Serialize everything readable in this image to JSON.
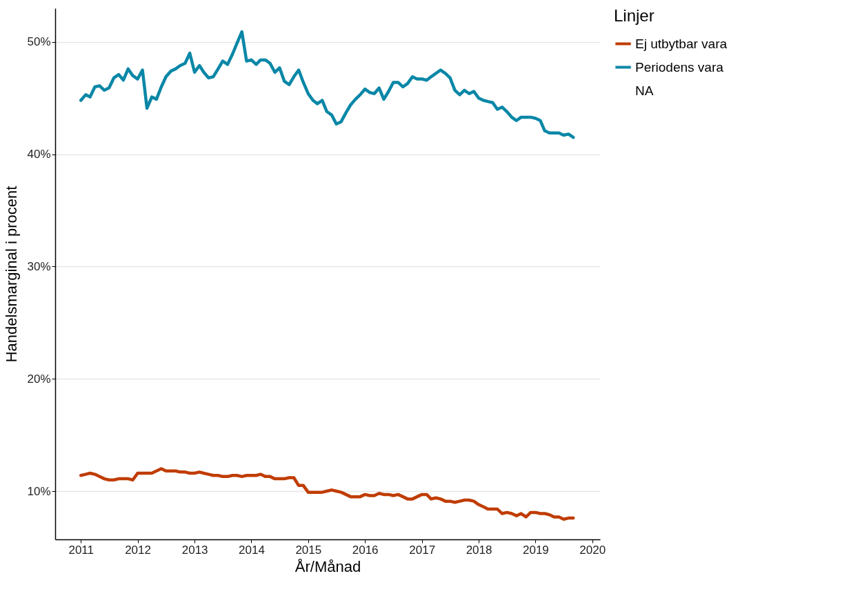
{
  "chart_data": {
    "type": "line",
    "xlabel": "År/Månad",
    "ylabel": "Handelsmarginal i procent",
    "legend_title": "Linjer",
    "x": [
      "2011-01",
      "2011-02",
      "2011-03",
      "2011-04",
      "2011-05",
      "2011-06",
      "2011-07",
      "2011-08",
      "2011-09",
      "2011-10",
      "2011-11",
      "2011-12",
      "2012-01",
      "2012-02",
      "2012-03",
      "2012-04",
      "2012-05",
      "2012-06",
      "2012-07",
      "2012-08",
      "2012-09",
      "2012-10",
      "2012-11",
      "2012-12",
      "2013-01",
      "2013-02",
      "2013-03",
      "2013-04",
      "2013-05",
      "2013-06",
      "2013-07",
      "2013-08",
      "2013-09",
      "2013-10",
      "2013-11",
      "2013-12",
      "2014-01",
      "2014-02",
      "2014-03",
      "2014-04",
      "2014-05",
      "2014-06",
      "2014-07",
      "2014-08",
      "2014-09",
      "2014-10",
      "2014-11",
      "2014-12",
      "2015-01",
      "2015-02",
      "2015-03",
      "2015-04",
      "2015-05",
      "2015-06",
      "2015-07",
      "2015-08",
      "2015-09",
      "2015-10",
      "2015-11",
      "2015-12",
      "2016-01",
      "2016-02",
      "2016-03",
      "2016-04",
      "2016-05",
      "2016-06",
      "2016-07",
      "2016-08",
      "2016-09",
      "2016-10",
      "2016-11",
      "2016-12",
      "2017-01",
      "2017-02",
      "2017-03",
      "2017-04",
      "2017-05",
      "2017-06",
      "2017-07",
      "2017-08",
      "2017-09",
      "2017-10",
      "2017-11",
      "2017-12",
      "2018-01",
      "2018-02",
      "2018-03",
      "2018-04",
      "2018-05",
      "2018-06",
      "2018-07",
      "2018-08",
      "2018-09",
      "2018-10",
      "2018-11",
      "2018-12",
      "2019-01",
      "2019-02",
      "2019-03",
      "2019-04",
      "2019-05",
      "2019-06",
      "2019-07",
      "2019-08",
      "2019-09"
    ],
    "series": [
      {
        "name": "Ej utbytbar vara",
        "color": "#c03c00",
        "values": [
          11.4,
          11.5,
          11.6,
          11.5,
          11.3,
          11.1,
          11.0,
          11.0,
          11.1,
          11.1,
          11.1,
          11.0,
          11.6,
          11.6,
          11.6,
          11.6,
          11.8,
          12.0,
          11.8,
          11.8,
          11.8,
          11.7,
          11.7,
          11.6,
          11.6,
          11.7,
          11.6,
          11.5,
          11.4,
          11.4,
          11.3,
          11.3,
          11.4,
          11.4,
          11.3,
          11.4,
          11.4,
          11.4,
          11.5,
          11.3,
          11.3,
          11.1,
          11.1,
          11.1,
          11.2,
          11.2,
          10.5,
          10.5,
          9.9,
          9.9,
          9.9,
          9.9,
          10.0,
          10.1,
          10.0,
          9.9,
          9.7,
          9.5,
          9.5,
          9.5,
          9.7,
          9.6,
          9.6,
          9.8,
          9.7,
          9.7,
          9.6,
          9.7,
          9.5,
          9.3,
          9.3,
          9.5,
          9.7,
          9.7,
          9.3,
          9.4,
          9.3,
          9.1,
          9.1,
          9.0,
          9.1,
          9.2,
          9.2,
          9.1,
          8.8,
          8.6,
          8.4,
          8.4,
          8.4,
          8.0,
          8.1,
          8.0,
          7.8,
          8.0,
          7.7,
          8.1,
          8.1,
          8.0,
          8.0,
          7.9,
          7.7,
          7.7,
          7.5,
          7.6,
          7.6
        ]
      },
      {
        "name": "Periodens vara",
        "color": "#0a87a7",
        "values": [
          44.8,
          45.3,
          45.1,
          46.0,
          46.1,
          45.7,
          45.9,
          46.8,
          47.1,
          46.6,
          47.6,
          47.0,
          46.7,
          47.5,
          44.1,
          45.1,
          44.9,
          46.0,
          46.9,
          47.4,
          47.6,
          47.9,
          48.1,
          49.0,
          47.3,
          47.9,
          47.3,
          46.8,
          46.9,
          47.6,
          48.3,
          48.0,
          48.9,
          49.9,
          50.9,
          48.3,
          48.4,
          48.0,
          48.4,
          48.4,
          48.1,
          47.3,
          47.7,
          46.5,
          46.2,
          46.9,
          47.5,
          46.4,
          45.4,
          44.8,
          44.5,
          44.8,
          43.8,
          43.5,
          42.7,
          42.9,
          43.7,
          44.4,
          44.9,
          45.3,
          45.8,
          45.5,
          45.4,
          45.9,
          44.9,
          45.6,
          46.4,
          46.4,
          46.0,
          46.3,
          46.9,
          46.7,
          46.7,
          46.6,
          46.9,
          47.2,
          47.5,
          47.2,
          46.8,
          45.7,
          45.3,
          45.7,
          45.4,
          45.6,
          45.0,
          44.8,
          44.7,
          44.6,
          44.0,
          44.2,
          43.8,
          43.3,
          43.0,
          43.3,
          43.3,
          43.3,
          43.2,
          43.0,
          42.1,
          41.9,
          41.9,
          41.9,
          41.7,
          41.8,
          41.5
        ]
      },
      {
        "name": "NA",
        "values": [
          null,
          null,
          null,
          null,
          null,
          null,
          null,
          null,
          null,
          null,
          null,
          null,
          null,
          null,
          null,
          null,
          null,
          null,
          null,
          null,
          null,
          null,
          null,
          null,
          null,
          null,
          null,
          null,
          null,
          null,
          null,
          null,
          null,
          null,
          null,
          null,
          null,
          null,
          null,
          null,
          null,
          null,
          null,
          null,
          null,
          null,
          null,
          null,
          null,
          null,
          null,
          null,
          null,
          null,
          null,
          null,
          null,
          null,
          null,
          null,
          null,
          null,
          null,
          null,
          null,
          null,
          null,
          null,
          null,
          null,
          null,
          null,
          null,
          null,
          null,
          null,
          null,
          null,
          null,
          null,
          null,
          null,
          null,
          null,
          null,
          null,
          null,
          null,
          null,
          null,
          null,
          null,
          null,
          null,
          null,
          null,
          null,
          null,
          null,
          null,
          null,
          null,
          null,
          null,
          null
        ]
      }
    ],
    "xlim": [
      "2010-07-20",
      "2020-02-20"
    ],
    "xticks": [
      {
        "value": "2011",
        "label": "2011"
      },
      {
        "value": "2012",
        "label": "2012"
      },
      {
        "value": "2013",
        "label": "2013"
      },
      {
        "value": "2014",
        "label": "2014"
      },
      {
        "value": "2015",
        "label": "2015"
      },
      {
        "value": "2016",
        "label": "2016"
      },
      {
        "value": "2017",
        "label": "2017"
      },
      {
        "value": "2018",
        "label": "2018"
      },
      {
        "value": "2019",
        "label": "2019"
      },
      {
        "value": "2020",
        "label": "2020"
      }
    ],
    "ylim": [
      5.7,
      53
    ],
    "yticks": [
      {
        "value": 10,
        "label": "10%"
      },
      {
        "value": 20,
        "label": "20%"
      },
      {
        "value": 30,
        "label": "30%"
      },
      {
        "value": 40,
        "label": "40%"
      },
      {
        "value": 50,
        "label": "50%"
      }
    ],
    "grid": "y",
    "legend": "right",
    "line_style": "solid",
    "marker": "none"
  }
}
